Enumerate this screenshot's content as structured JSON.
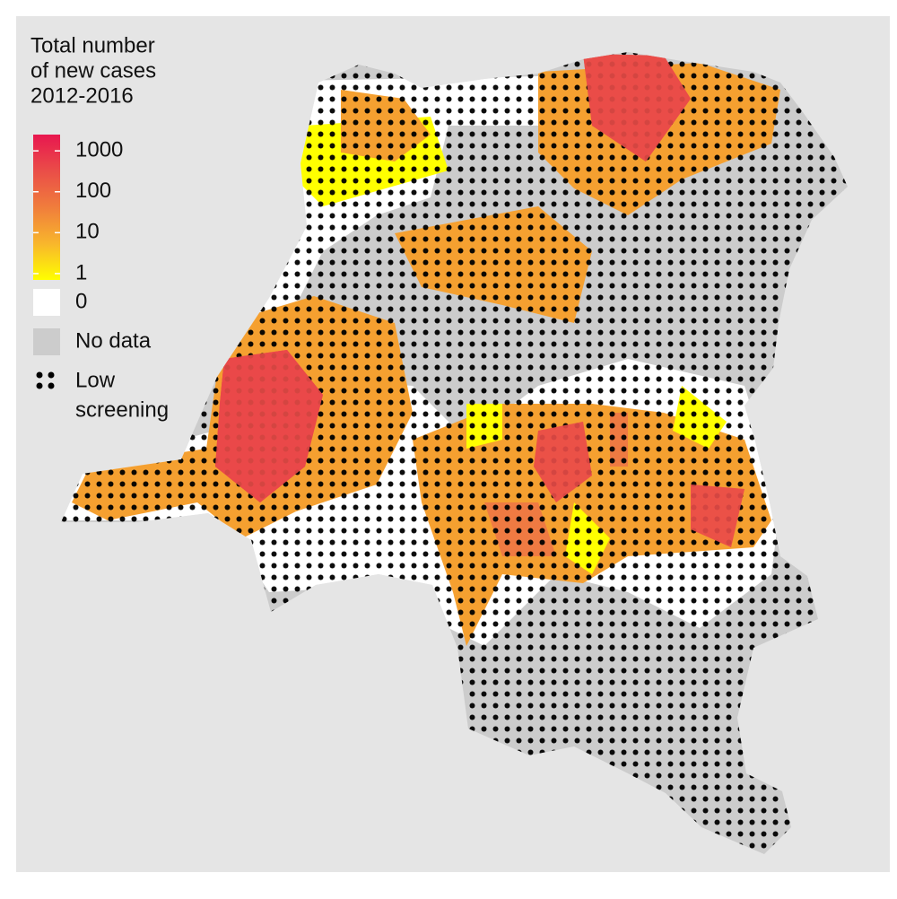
{
  "legend": {
    "title": [
      "Total number",
      "of new cases",
      "2012-2016"
    ],
    "colorbar": {
      "log": true,
      "lim": [
        0.7,
        2500
      ],
      "ticks": [
        1,
        10,
        100,
        1000
      ],
      "colors": [
        "#ffff00",
        "#f8b62c",
        "#f07d3c",
        "#ea4d48",
        "#e8174f"
      ]
    },
    "keys": [
      {
        "label": "0",
        "color": "#ffffff"
      },
      {
        "label": "No data",
        "color": "#cccccc"
      },
      {
        "label": [
          "Low",
          "screening"
        ],
        "pattern": "dots"
      }
    ]
  }
}
